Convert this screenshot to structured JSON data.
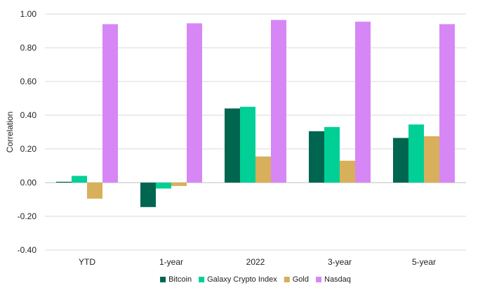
{
  "chart_data": {
    "type": "bar",
    "title": "",
    "xlabel": "",
    "ylabel": "Correlation",
    "ylim": [
      -0.4,
      1.0
    ],
    "ytick_step": 0.2,
    "yticks": [
      "1.00",
      "0.80",
      "0.60",
      "0.40",
      "0.20",
      "0.00",
      "-0.20",
      "-0.40"
    ],
    "grid": true,
    "legend_position": "bottom",
    "categories": [
      "YTD",
      "1-year",
      "2022",
      "3-year",
      "5-year"
    ],
    "series": [
      {
        "name": "Bitcoin",
        "color": "#00664f",
        "values": [
          0.005,
          -0.145,
          0.44,
          0.305,
          0.265
        ]
      },
      {
        "name": "Galaxy Crypto Index",
        "color": "#00d096",
        "values": [
          0.04,
          -0.035,
          0.45,
          0.33,
          0.345
        ]
      },
      {
        "name": "Gold",
        "color": "#d8af5a",
        "values": [
          -0.095,
          -0.02,
          0.155,
          0.13,
          0.275
        ]
      },
      {
        "name": "Nasdaq",
        "color": "#d787f5",
        "values": [
          0.94,
          0.945,
          0.965,
          0.955,
          0.94
        ]
      }
    ]
  }
}
